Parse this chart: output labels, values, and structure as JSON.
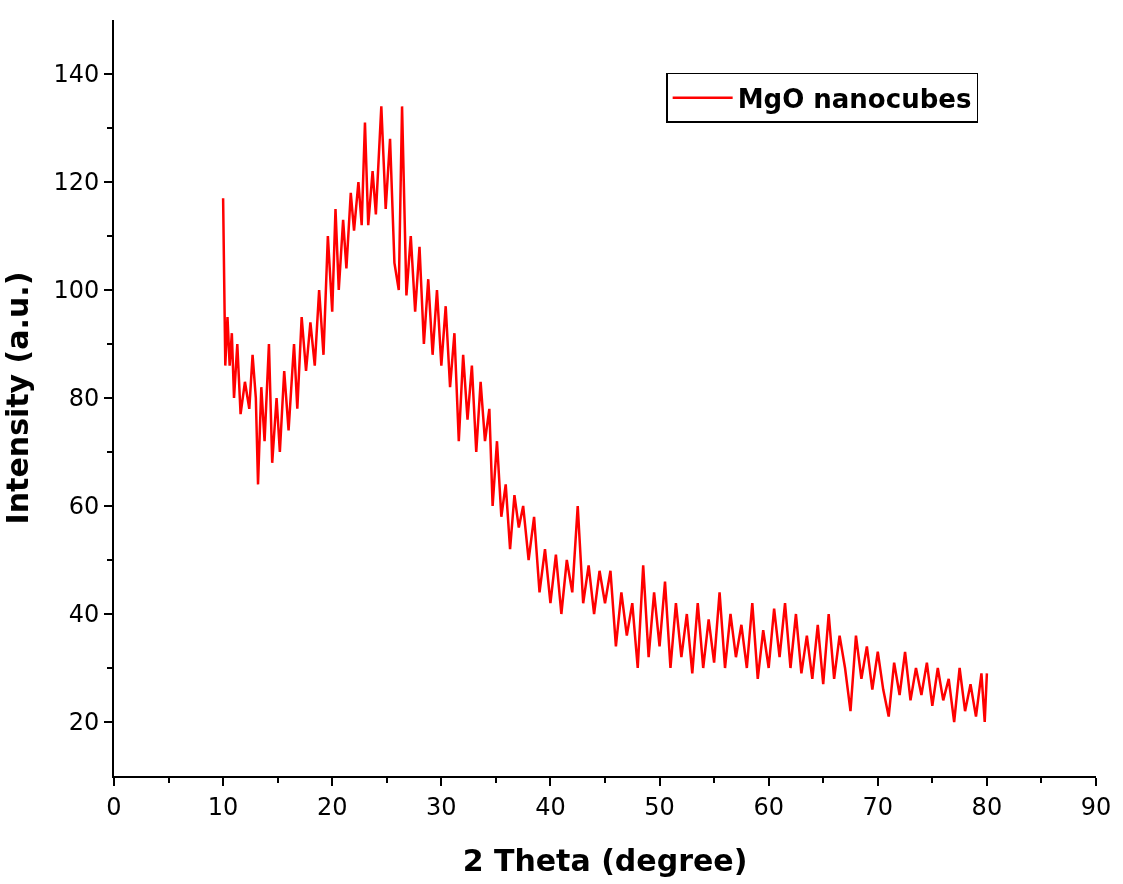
{
  "chart_data": {
    "type": "line",
    "xlabel": "2 Theta (degree)",
    "ylabel": "Intensity (a.u.)",
    "xlim": [
      0,
      90
    ],
    "xticks": [
      0,
      10,
      20,
      30,
      40,
      50,
      60,
      70,
      80,
      90
    ],
    "ylim": [
      10,
      150
    ],
    "yticks": [
      20,
      40,
      60,
      80,
      100,
      120,
      140
    ],
    "legend": "top right",
    "marker": "none",
    "line_style": "solid",
    "series": [
      {
        "name": "MgO nanocubes",
        "color": "#ff0000",
        "x": [
          10,
          10.2,
          10.4,
          10.6,
          10.8,
          11,
          11.3,
          11.6,
          12,
          12.4,
          12.7,
          13,
          13.2,
          13.5,
          13.8,
          14.2,
          14.5,
          14.9,
          15.2,
          15.6,
          16,
          16.5,
          16.8,
          17.2,
          17.6,
          18,
          18.4,
          18.8,
          19.2,
          19.6,
          20,
          20.3,
          20.6,
          21,
          21.3,
          21.7,
          22,
          22.4,
          22.7,
          23,
          23.3,
          23.7,
          24,
          24.5,
          24.9,
          25.3,
          25.7,
          26.1,
          26.4,
          26.8,
          27.2,
          27.6,
          28,
          28.4,
          28.8,
          29.2,
          29.6,
          30,
          30.4,
          30.8,
          31.2,
          31.6,
          32,
          32.4,
          32.8,
          33.2,
          33.6,
          34,
          34.4,
          34.7,
          35.1,
          35.5,
          35.9,
          36.3,
          36.7,
          37.1,
          37.5,
          38,
          38.5,
          39,
          39.5,
          40,
          40.5,
          41,
          41.5,
          42,
          42.5,
          43,
          43.5,
          44,
          44.5,
          45,
          45.5,
          46,
          46.5,
          47,
          47.5,
          48,
          48.5,
          49,
          49.5,
          50,
          50.5,
          51,
          51.5,
          52,
          52.5,
          53,
          53.5,
          54,
          54.5,
          55,
          55.5,
          56,
          56.5,
          57,
          57.5,
          58,
          58.5,
          59,
          59.5,
          60,
          60.5,
          61,
          61.5,
          62,
          62.5,
          63,
          63.5,
          64,
          64.5,
          65,
          65.5,
          66,
          66.5,
          67,
          67.5,
          68,
          68.5,
          69,
          69.5,
          70,
          70.5,
          71,
          71.5,
          72,
          72.5,
          73,
          73.5,
          74,
          74.5,
          75,
          75.5,
          76,
          76.5,
          77,
          77.5,
          78,
          78.5,
          79,
          79.5,
          79.8,
          80
        ],
        "values": [
          117,
          86,
          95,
          86,
          92,
          80,
          90,
          77,
          83,
          78,
          88,
          80,
          64,
          82,
          72,
          90,
          68,
          80,
          70,
          85,
          74,
          90,
          78,
          95,
          85,
          94,
          86,
          100,
          88,
          110,
          96,
          115,
          100,
          113,
          104,
          118,
          111,
          120,
          112,
          131,
          112,
          122,
          114,
          134,
          115,
          128,
          105,
          100,
          134,
          99,
          110,
          96,
          108,
          90,
          102,
          88,
          100,
          86,
          97,
          82,
          92,
          72,
          88,
          76,
          86,
          70,
          83,
          72,
          78,
          60,
          72,
          58,
          64,
          52,
          62,
          56,
          60,
          50,
          58,
          44,
          52,
          42,
          51,
          40,
          50,
          44,
          60,
          42,
          49,
          40,
          48,
          42,
          48,
          34,
          44,
          36,
          42,
          30,
          49,
          32,
          44,
          34,
          46,
          30,
          42,
          32,
          40,
          29,
          42,
          30,
          39,
          31,
          44,
          30,
          40,
          32,
          38,
          30,
          42,
          28,
          37,
          30,
          41,
          32,
          42,
          30,
          40,
          29,
          36,
          28,
          38,
          27,
          40,
          28,
          36,
          30,
          22,
          36,
          28,
          34,
          26,
          33,
          26,
          21,
          31,
          25,
          33,
          24,
          30,
          25,
          31,
          23,
          30,
          24,
          28,
          20,
          30,
          22,
          27,
          21,
          29,
          20,
          29
        ]
      }
    ]
  }
}
